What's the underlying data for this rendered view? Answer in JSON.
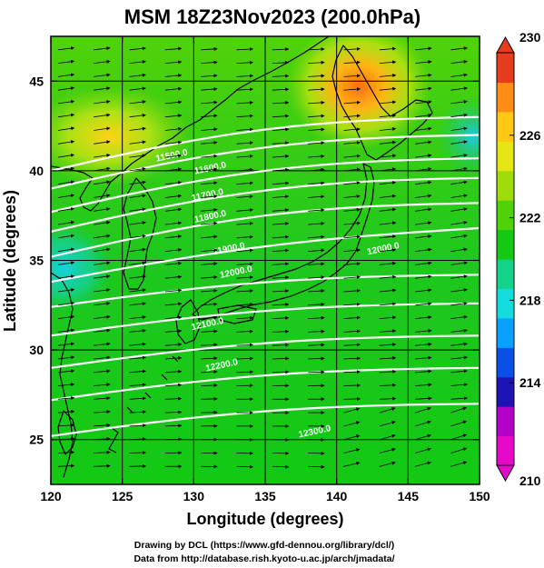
{
  "title": "MSM 18Z23Nov2023 (200.0hPa)",
  "xaxis": {
    "label": "Longitude (degrees)",
    "range": [
      120,
      150
    ],
    "ticks": [
      120,
      125,
      130,
      135,
      140,
      145,
      150
    ]
  },
  "yaxis": {
    "label": "Latitude  (degrees)",
    "range": [
      22.5,
      47.5
    ],
    "ticks": [
      25,
      30,
      35,
      40,
      45
    ]
  },
  "colorbar": {
    "min": 210,
    "max": 230,
    "tick_labels": [
      "230",
      "226",
      "222",
      "218",
      "214",
      "210"
    ],
    "tick_values": [
      230,
      226,
      222,
      218,
      214,
      210
    ],
    "colors": [
      "#e60ac8",
      "#b400c8",
      "#1e14b4",
      "#0a50e6",
      "#0aa0ff",
      "#14dcdc",
      "#14d28c",
      "#14c814",
      "#50d20a",
      "#a0dc0a",
      "#e6e614",
      "#ffc814",
      "#ff8c14",
      "#e63c1e"
    ]
  },
  "contours": {
    "units": "m",
    "labels": [
      {
        "text": "11500.0",
        "lon": 128.5,
        "lat": 40.7
      },
      {
        "text": "11600.0",
        "lon": 131.2,
        "lat": 40.0
      },
      {
        "text": "11700.0",
        "lon": 131.0,
        "lat": 38.5
      },
      {
        "text": "11800.0",
        "lon": 131.2,
        "lat": 37.3
      },
      {
        "text": "11900.0",
        "lon": 132.5,
        "lat": 35.5
      },
      {
        "text": "12000.0",
        "lon": 133.0,
        "lat": 34.2
      },
      {
        "text": "12000.0",
        "lon": 143.3,
        "lat": 35.5
      },
      {
        "text": "12100.0",
        "lon": 131.0,
        "lat": 31.3
      },
      {
        "text": "12200.0",
        "lon": 132.0,
        "lat": 29.0
      },
      {
        "text": "12300.0",
        "lon": 138.5,
        "lat": 25.3
      }
    ]
  },
  "credits": {
    "line1": "Drawing by DCL (https://www.gfd-dennou.org/library/dcl/)",
    "line2": "Data from http://database.rish.kyoto-u.ac.jp/arch/jmadata/"
  }
}
